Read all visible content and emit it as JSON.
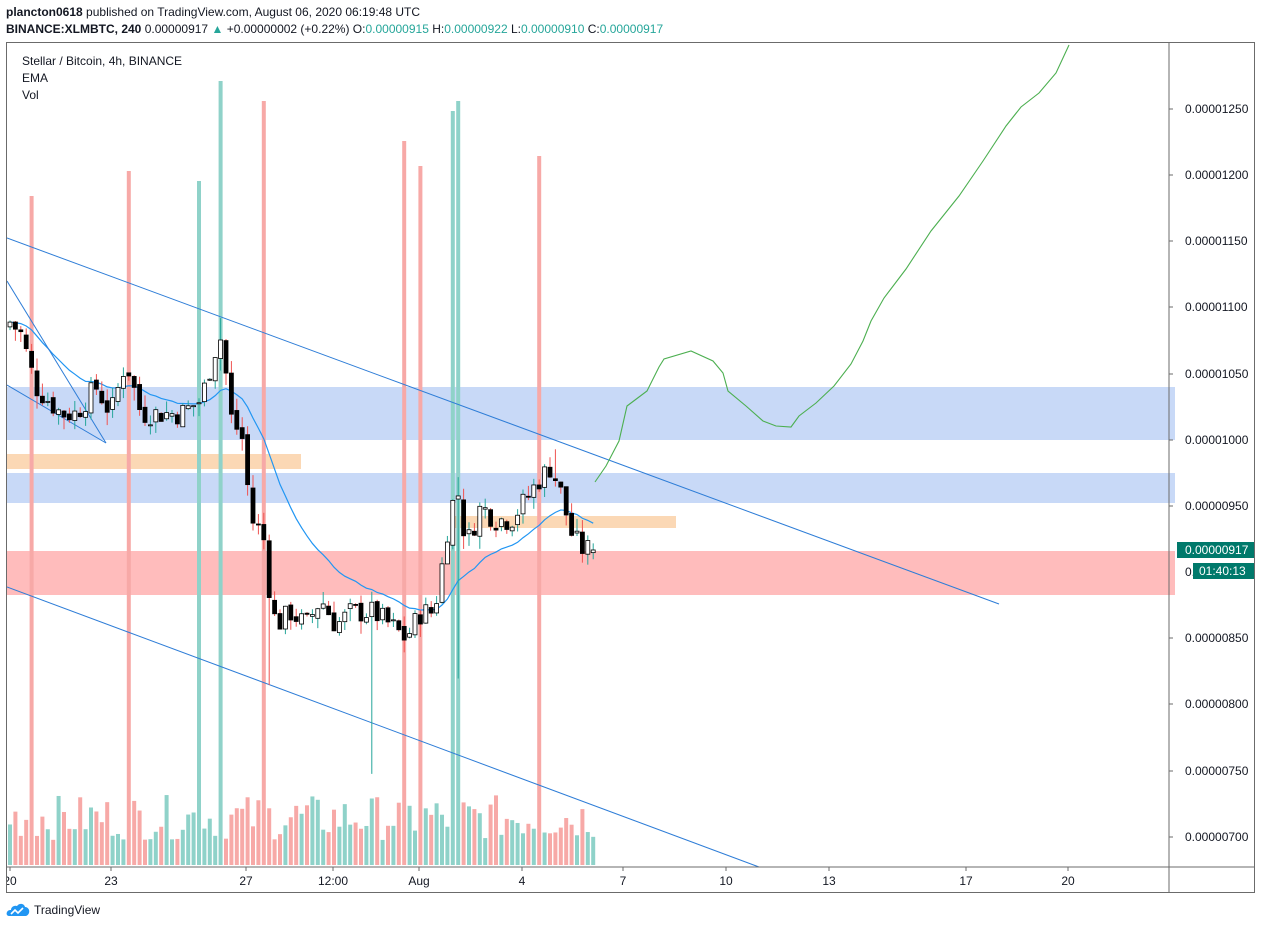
{
  "header": {
    "author": "plancton0618",
    "published_text": "published on TradingView.com, August 06, 2020 06:19:48 UTC",
    "symbol": "BINANCE:XLMBTC, 240",
    "price": "0.00000917",
    "change": "+0.00000002 (+0.22%)",
    "o_label": "O:",
    "o": "0.00000915",
    "h_label": "H:",
    "h": "0.00000922",
    "l_label": "L:",
    "l": "0.00000910",
    "c_label": "C:",
    "c": "0.00000917"
  },
  "legend": {
    "title": "Stellar / Bitcoin, 4h, BINANCE",
    "ema": "EMA",
    "vol": "Vol"
  },
  "price_axis": {
    "labels": [
      "0.00001250",
      "0.00001200",
      "0.00001150",
      "0.00001100",
      "0.00001050",
      "0.00001000",
      "0.00000950",
      "0.00000850",
      "0.00000800",
      "0.00000750",
      "0.00000700"
    ],
    "current_price": "0.00000917",
    "countdown": "01:40:13",
    "hidden_label_fragment": "0."
  },
  "time_axis": {
    "labels": [
      "20",
      "23",
      "27",
      "12:00",
      "Aug",
      "4",
      "7",
      "10",
      "13",
      "17",
      "20"
    ]
  },
  "footer": {
    "brand": "TradingView"
  },
  "colors": {
    "up": "#26a69a",
    "down": "#ef5350",
    "candle_up_fill": "#ffffff",
    "candle_down_fill": "#000000",
    "ema": "#2196f3",
    "trendline": "#2e7dd7",
    "projection": "#4caf50",
    "zone_blue": "#c8d9f7",
    "zone_red": "#ffbcbc",
    "zone_orange": "#fbd8b5",
    "axis_badge": "#00796b"
  },
  "chart_data": {
    "type": "candlestick",
    "title": "Stellar / Bitcoin, 4h, BINANCE",
    "price_range": [
      6.8e-06,
      1.3e-05
    ],
    "indicators": [
      "EMA",
      "Vol"
    ],
    "last": {
      "open": 9.15e-06,
      "high": 9.22e-06,
      "low": 9.1e-06,
      "close": 9.17e-06
    },
    "support_resistance_zones": [
      {
        "kind": "resistance",
        "low": 1e-05,
        "high": 1.04e-05
      },
      {
        "kind": "resistance",
        "low": 9.53e-06,
        "high": 9.75e-06
      },
      {
        "kind": "support",
        "low": 8.82e-06,
        "high": 9.15e-06
      },
      {
        "kind": "level",
        "low": 9.78e-06,
        "high": 9.88e-06
      },
      {
        "kind": "level",
        "low": 9.35e-06,
        "high": 9.43e-06
      }
    ]
  }
}
